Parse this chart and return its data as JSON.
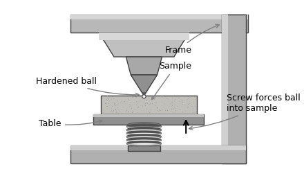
{
  "title": "",
  "bg_color": "#ffffff",
  "frame_color": "#a0a0a0",
  "frame_dark": "#808080",
  "frame_light": "#c8c8c8",
  "frame_border": "#404040",
  "spring_color": "#909090",
  "sample_color": "#c0c0c0",
  "sample_texture": "#b0b0b0",
  "labels": {
    "hardened_ball": "Hardened ball",
    "frame": "Frame",
    "sample": "Sample",
    "table": "Table",
    "screw": "Screw forces ball\ninto sample"
  },
  "label_fontsize": 9,
  "figsize": [
    4.4,
    2.57
  ],
  "dpi": 100
}
